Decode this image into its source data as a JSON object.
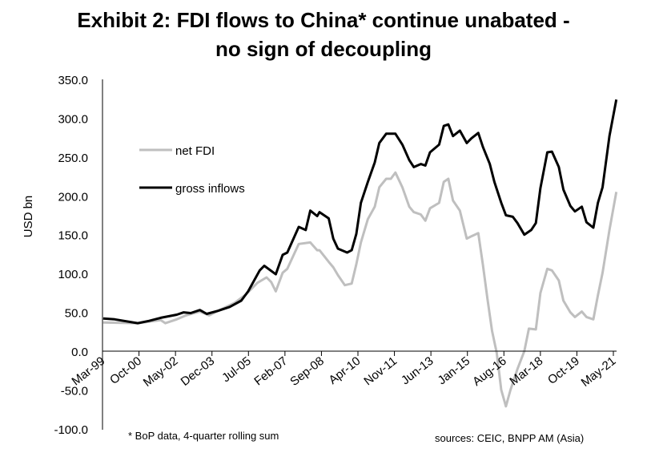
{
  "chart_data": {
    "type": "line",
    "title": "Exhibit 2: FDI flows to China* continue unabated -",
    "title_line2": "no sign of decoupling",
    "ylabel": "USD bn",
    "xlabel": "",
    "ylim": [
      -100,
      350
    ],
    "y_ticks": [
      "350.0",
      "300.0",
      "250.0",
      "200.0",
      "150.0",
      "100.0",
      "50.0",
      "0.0",
      "-50.0",
      "-100.0"
    ],
    "x_ticks": [
      "Mar-99",
      "Oct-00",
      "May-02",
      "Dec-03",
      "Jul-05",
      "Feb-07",
      "Sep-08",
      "Apr-10",
      "Nov-11",
      "Jun-13",
      "Jan-15",
      "Aug-16",
      "Mar-18",
      "Oct-19",
      "May-21"
    ],
    "x_unit": "decimal year",
    "grid": false,
    "legend_position": "upper-left",
    "footnote": "* BoP data, 4-quarter rolling sum",
    "source": "sources: CEIC, BNPP AM (Asia)",
    "series": [
      {
        "name": "net FDI",
        "color": "#bfbfbf",
        "points": [
          [
            1999.2,
            37
          ],
          [
            2000.7,
            36
          ],
          [
            2001.7,
            40
          ],
          [
            2001.9,
            36
          ],
          [
            2002.4,
            41
          ],
          [
            2002.8,
            46
          ],
          [
            2003.4,
            51
          ],
          [
            2003.8,
            46
          ],
          [
            2004.2,
            52
          ],
          [
            2004.9,
            62
          ],
          [
            2005.4,
            73
          ],
          [
            2005.9,
            88
          ],
          [
            2006.3,
            95
          ],
          [
            2006.5,
            89
          ],
          [
            2006.7,
            77
          ],
          [
            2007.0,
            101
          ],
          [
            2007.2,
            106
          ],
          [
            2007.7,
            138
          ],
          [
            2008.2,
            140
          ],
          [
            2008.5,
            130
          ],
          [
            2008.6,
            130
          ],
          [
            2009.0,
            115
          ],
          [
            2009.2,
            108
          ],
          [
            2009.4,
            98
          ],
          [
            2009.7,
            85
          ],
          [
            2010.0,
            87
          ],
          [
            2010.2,
            112
          ],
          [
            2010.4,
            140
          ],
          [
            2010.7,
            170
          ],
          [
            2011.0,
            186
          ],
          [
            2011.2,
            211
          ],
          [
            2011.5,
            222
          ],
          [
            2011.7,
            222
          ],
          [
            2011.9,
            230
          ],
          [
            2012.2,
            211
          ],
          [
            2012.5,
            186
          ],
          [
            2012.7,
            179
          ],
          [
            2013.0,
            176
          ],
          [
            2013.2,
            168
          ],
          [
            2013.4,
            184
          ],
          [
            2013.8,
            191
          ],
          [
            2014.0,
            218
          ],
          [
            2014.2,
            222
          ],
          [
            2014.4,
            194
          ],
          [
            2014.7,
            181
          ],
          [
            2015.0,
            145
          ],
          [
            2015.2,
            148
          ],
          [
            2015.5,
            152
          ],
          [
            2015.7,
            111
          ],
          [
            2015.9,
            67
          ],
          [
            2016.1,
            26
          ],
          [
            2016.3,
            -2
          ],
          [
            2016.5,
            -50
          ],
          [
            2016.7,
            -71
          ],
          [
            2016.9,
            -50
          ],
          [
            2017.2,
            -23
          ],
          [
            2017.5,
            0
          ],
          [
            2017.7,
            29
          ],
          [
            2018.0,
            28
          ],
          [
            2018.2,
            75
          ],
          [
            2018.5,
            106
          ],
          [
            2018.7,
            104
          ],
          [
            2019.0,
            91
          ],
          [
            2019.2,
            65
          ],
          [
            2019.5,
            50
          ],
          [
            2019.7,
            44
          ],
          [
            2020.0,
            51
          ],
          [
            2020.2,
            44
          ],
          [
            2020.5,
            41
          ],
          [
            2020.7,
            72
          ],
          [
            2020.9,
            101
          ],
          [
            2021.2,
            156
          ],
          [
            2021.5,
            205
          ]
        ]
      },
      {
        "name": "gross inflows",
        "color": "#000000",
        "points": [
          [
            1999.2,
            42
          ],
          [
            1999.7,
            41
          ],
          [
            2000.7,
            36
          ],
          [
            2001.2,
            39
          ],
          [
            2001.7,
            43
          ],
          [
            2002.4,
            47
          ],
          [
            2002.7,
            50
          ],
          [
            2003.0,
            49
          ],
          [
            2003.4,
            53
          ],
          [
            2003.7,
            48
          ],
          [
            2004.2,
            52
          ],
          [
            2004.7,
            57
          ],
          [
            2005.2,
            65
          ],
          [
            2005.5,
            77
          ],
          [
            2006.0,
            104
          ],
          [
            2006.2,
            110
          ],
          [
            2006.7,
            99
          ],
          [
            2007.0,
            124
          ],
          [
            2007.2,
            127
          ],
          [
            2007.7,
            160
          ],
          [
            2008.0,
            156
          ],
          [
            2008.2,
            181
          ],
          [
            2008.5,
            174
          ],
          [
            2008.6,
            179
          ],
          [
            2009.0,
            171
          ],
          [
            2009.2,
            145
          ],
          [
            2009.4,
            132
          ],
          [
            2009.8,
            127
          ],
          [
            2010.0,
            130
          ],
          [
            2010.2,
            151
          ],
          [
            2010.4,
            191
          ],
          [
            2010.7,
            218
          ],
          [
            2011.0,
            243
          ],
          [
            2011.2,
            268
          ],
          [
            2011.5,
            280
          ],
          [
            2011.9,
            280
          ],
          [
            2012.2,
            266
          ],
          [
            2012.5,
            246
          ],
          [
            2012.7,
            237
          ],
          [
            2013.0,
            241
          ],
          [
            2013.2,
            239
          ],
          [
            2013.4,
            256
          ],
          [
            2013.8,
            266
          ],
          [
            2014.0,
            290
          ],
          [
            2014.2,
            292
          ],
          [
            2014.4,
            277
          ],
          [
            2014.7,
            284
          ],
          [
            2015.0,
            268
          ],
          [
            2015.2,
            274
          ],
          [
            2015.5,
            281
          ],
          [
            2015.7,
            263
          ],
          [
            2016.0,
            241
          ],
          [
            2016.2,
            218
          ],
          [
            2016.5,
            191
          ],
          [
            2016.7,
            175
          ],
          [
            2017.0,
            173
          ],
          [
            2017.2,
            165
          ],
          [
            2017.5,
            150
          ],
          [
            2017.8,
            156
          ],
          [
            2018.0,
            165
          ],
          [
            2018.2,
            210
          ],
          [
            2018.5,
            256
          ],
          [
            2018.7,
            257
          ],
          [
            2019.0,
            237
          ],
          [
            2019.2,
            208
          ],
          [
            2019.5,
            187
          ],
          [
            2019.7,
            180
          ],
          [
            2020.0,
            186
          ],
          [
            2020.2,
            166
          ],
          [
            2020.5,
            159
          ],
          [
            2020.7,
            191
          ],
          [
            2020.9,
            211
          ],
          [
            2021.2,
            277
          ],
          [
            2021.5,
            324
          ]
        ]
      }
    ]
  }
}
